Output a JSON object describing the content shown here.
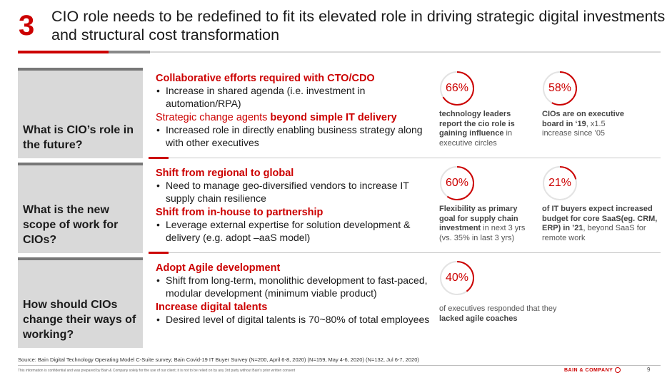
{
  "header": {
    "number": "3",
    "title": "CIO role needs to be redefined to fit its elevated role in driving strategic digital investments and structural cost transformation"
  },
  "sections": [
    {
      "question": "What is CIO’s role in the future?",
      "blocks": [
        {
          "heading": "Collaborative efforts required with CTO/CDO",
          "bullet": "Increase in shared agenda (i.e. investment in automation/RPA)"
        },
        {
          "heading_plain": "Strategic change agents ",
          "heading_bold": "beyond simple IT delivery",
          "bullet": "Increased role in directly enabling business strategy along with other executives"
        }
      ],
      "stats": [
        {
          "value": 66,
          "label": "66%",
          "desc_bold": "technology leaders report the cio role is gaining influence",
          "desc_rest": " in executive circles"
        },
        {
          "value": 58,
          "label": "58%",
          "desc_bold": "CIOs are on executive board in ‘19",
          "desc_rest": ", x1.5 increase since ’05"
        }
      ]
    },
    {
      "question": "What is the new scope of work for CIOs?",
      "blocks": [
        {
          "heading": "Shift from regional to global",
          "bullet": "Need to manage geo-diversified vendors to increase IT supply chain resilience"
        },
        {
          "heading": "Shift from in-house to partnership",
          "bullet": "Leverage external expertise for solution development & delivery (e.g. adopt –aaS model)"
        }
      ],
      "stats": [
        {
          "value": 60,
          "label": "60%",
          "desc_bold": "Flexibility as primary goal for supply chain investment",
          "desc_rest": " in next 3 yrs (vs. 35% in last 3 yrs)"
        },
        {
          "value": 21,
          "label": "21%",
          "desc_bold": "of IT buyers expect increased budget for core SaaS(eg. CRM, ERP) in ’21",
          "desc_rest": ", beyond SaaS for remote work"
        }
      ]
    },
    {
      "question": "How should CIOs change their ways of working?",
      "blocks": [
        {
          "heading": "Adopt Agile development",
          "bullet": "Shift from long-term, monolithic development to fast-paced, modular development (minimum viable product)"
        },
        {
          "heading": "Increase digital talents",
          "bullet": "Desired level of digital talents is 70~80% of total employees"
        }
      ],
      "stats": [
        {
          "value": 40,
          "label": "40%",
          "desc_plain": "of executives responded that they ",
          "desc_bold": "lacked agile coaches"
        }
      ]
    }
  ],
  "footer": {
    "source": "Source: Bain Digital Technology Operating Model C-Suite survey; Bain Covid-19 IT Buyer Survey (N=200, April 6-8, 2020) (N=159, May 4-6, 2020) (N=132, Jul 6-7, 2020)",
    "disclaimer": "This information is confidential and was prepared by Bain & Company solely for the use of our client; it is not to be relied on by any 3rd party without Bain’s prior written consent",
    "brand": "BAIN & COMPANY",
    "page": "9"
  },
  "colors": {
    "accent": "#cc0000",
    "ring_track": "#e3e3e3",
    "question_bg": "#d9d9d9"
  }
}
